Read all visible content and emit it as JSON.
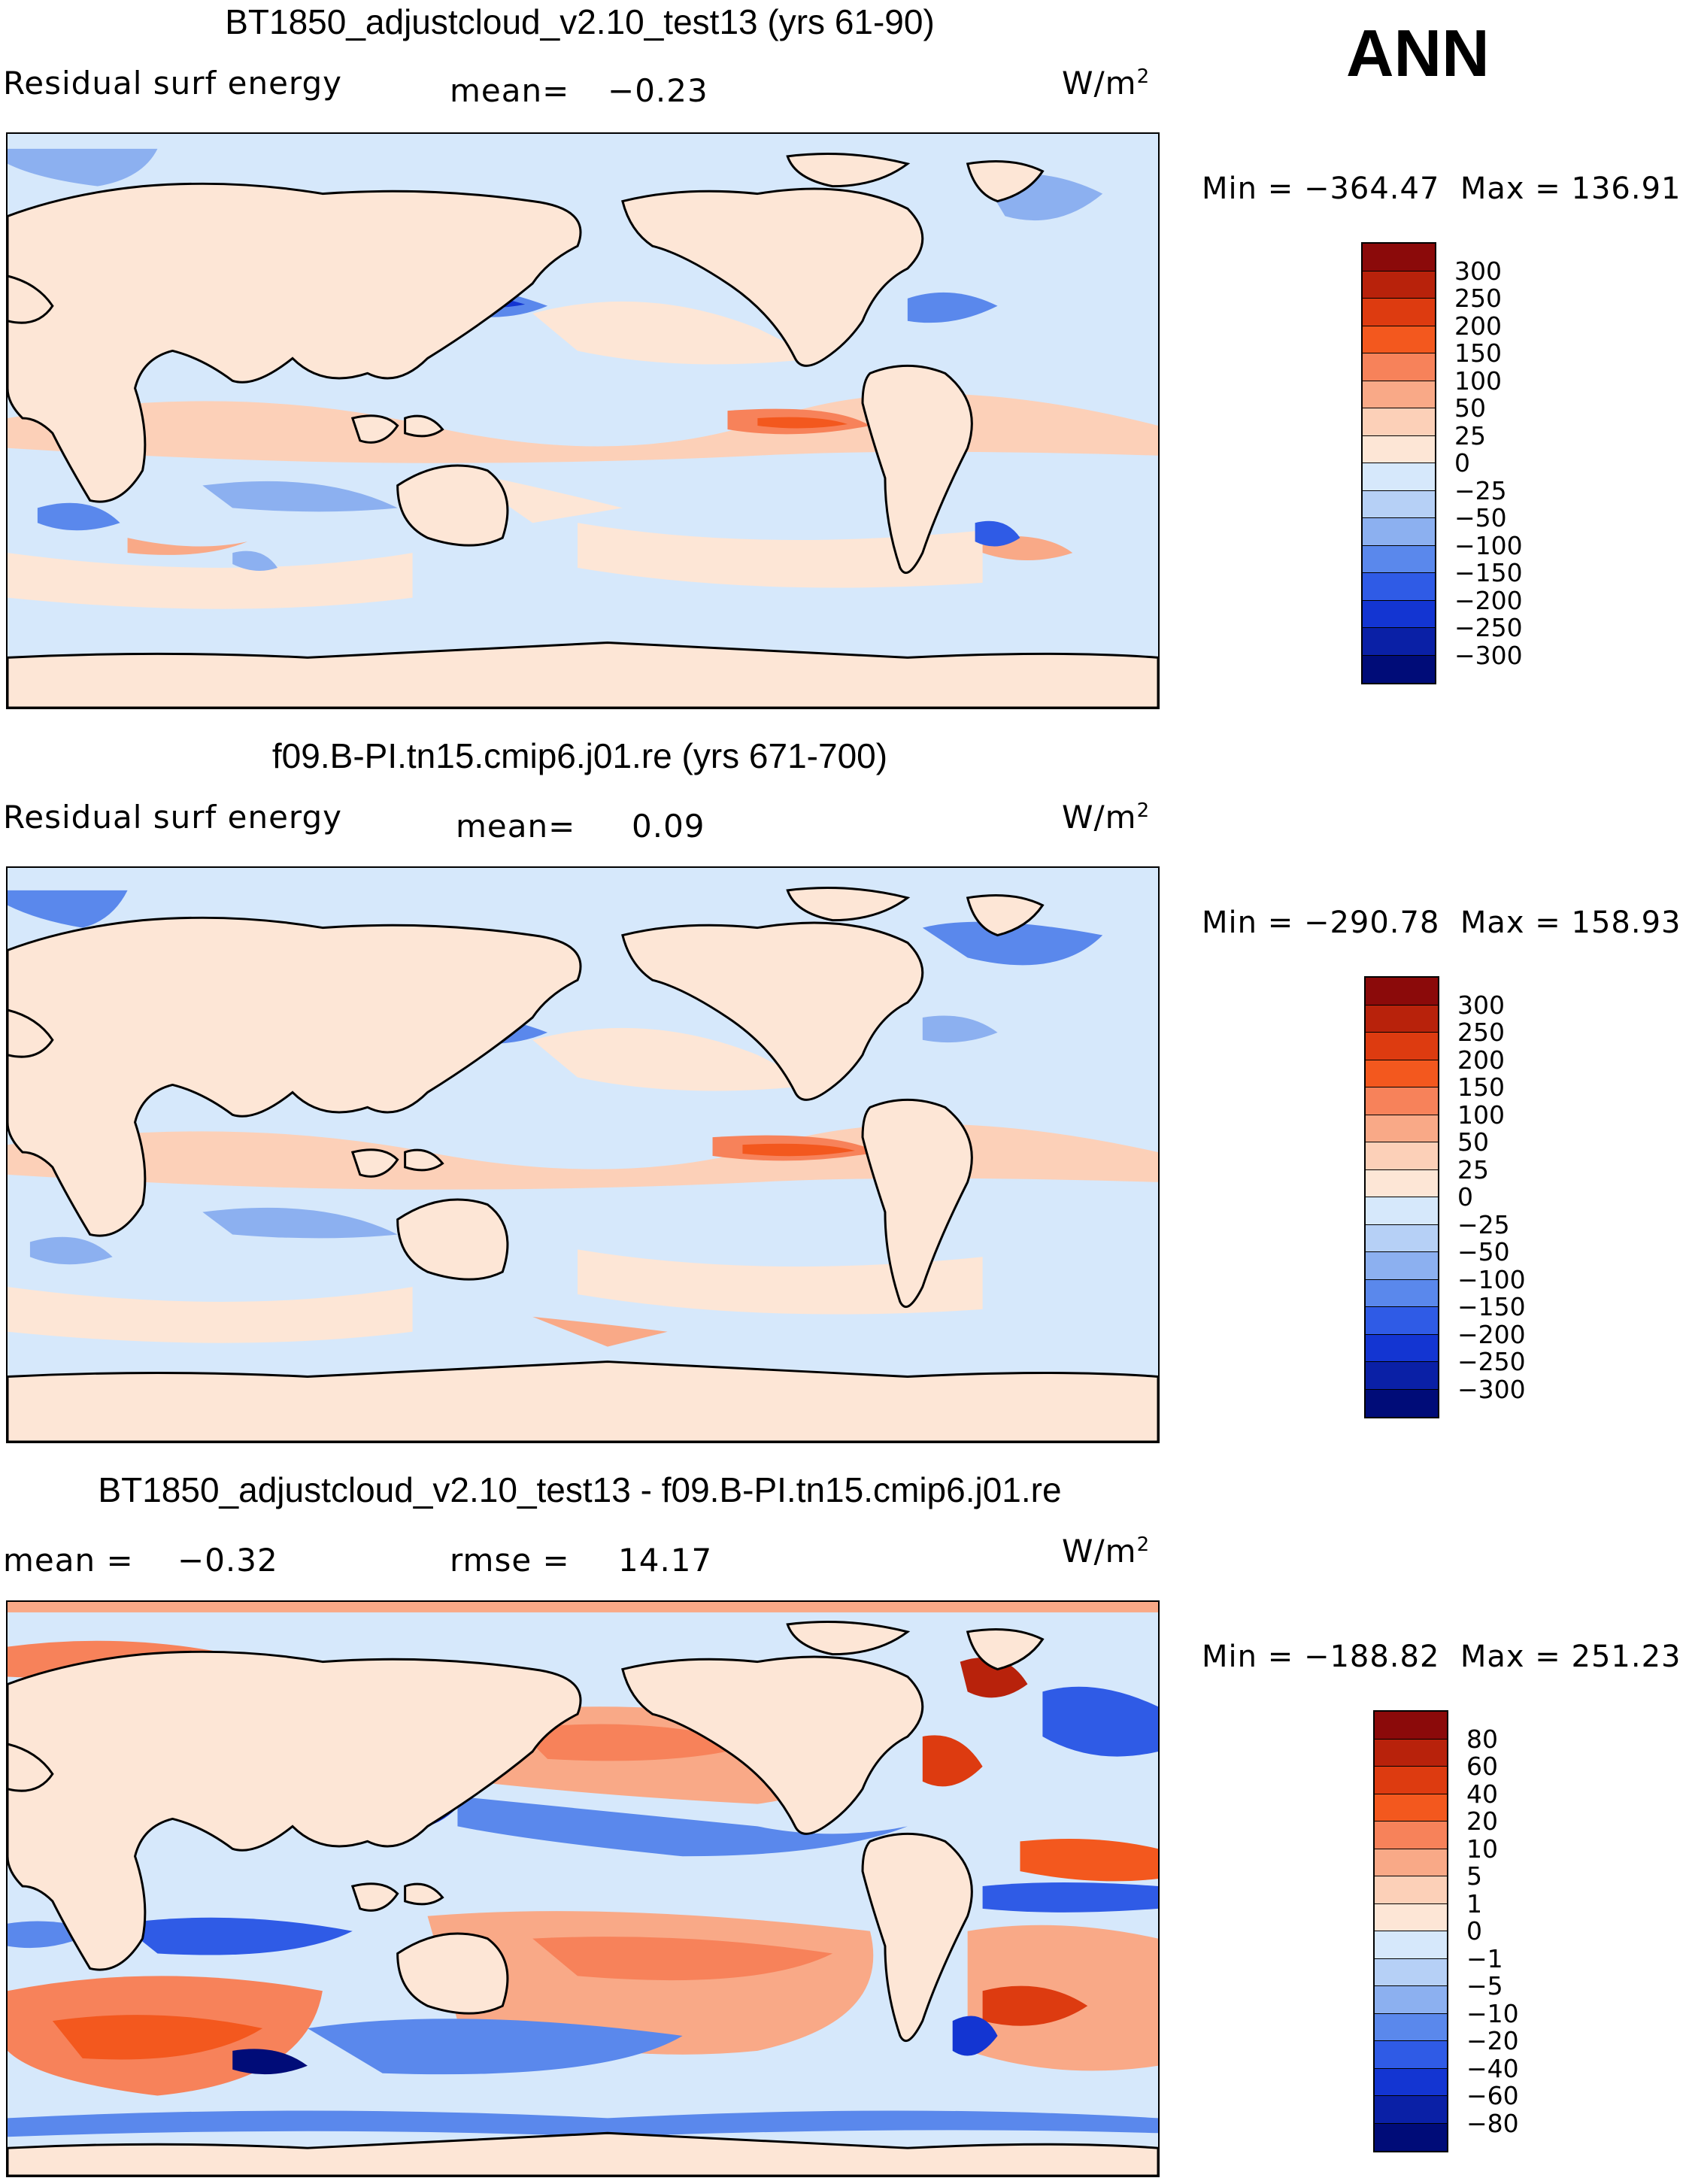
{
  "season": "ANN",
  "units": "W/m",
  "units_exp": "2",
  "panels": [
    {
      "title": "BT1850_adjustcloud_v2.10_test13 (yrs 61-90)",
      "variable": "Residual surf energy",
      "stat1_label": "mean=",
      "stat1_value": "−0.23",
      "min_label": "Min =",
      "min_value": "−364.47",
      "max_label": "Max =",
      "max_value": "136.91"
    },
    {
      "title": "f09.B-PI.tn15.cmip6.j01.re (yrs 671-700)",
      "variable": "Residual surf energy",
      "stat1_label": "mean=",
      "stat1_value": "0.09",
      "min_label": "Min =",
      "min_value": "−290.78",
      "max_label": "Max =",
      "max_value": "158.93"
    },
    {
      "title": "BT1850_adjustcloud_v2.10_test13 - f09.B-PI.tn15.cmip6.j01.re",
      "stat1_label": "mean =",
      "stat1_value": "−0.32",
      "stat2_label": "rmse =",
      "stat2_value": "14.17",
      "min_label": "Min =",
      "min_value": "−188.82",
      "max_label": "Max =",
      "max_value": "251.23"
    }
  ],
  "colorbar_main": {
    "labels": [
      "300",
      "250",
      "200",
      "150",
      "100",
      "50",
      "25",
      "0",
      "−25",
      "−50",
      "−100",
      "−150",
      "−200",
      "−250",
      "−300"
    ],
    "colors": [
      "#8b0a0a",
      "#b8220b",
      "#dd3b10",
      "#f3581e",
      "#f7825a",
      "#f9a987",
      "#fcd0b8",
      "#fde6d6",
      "#d6e8fb",
      "#b6d0f6",
      "#8cb0f0",
      "#5a88ec",
      "#2f5be6",
      "#1335d2",
      "#0a20a6",
      "#000c78"
    ]
  },
  "colorbar_diff": {
    "labels": [
      "80",
      "60",
      "40",
      "20",
      "10",
      "5",
      "1",
      "0",
      "−1",
      "−5",
      "−10",
      "−20",
      "−40",
      "−60",
      "−80"
    ],
    "colors": [
      "#8b0a0a",
      "#b8220b",
      "#dd3b10",
      "#f3581e",
      "#f7825a",
      "#f9a987",
      "#fcd0b8",
      "#fde6d6",
      "#d6e8fb",
      "#b6d0f6",
      "#8cb0f0",
      "#5a88ec",
      "#2f5be6",
      "#1335d2",
      "#0a20a6",
      "#000c78"
    ]
  }
}
